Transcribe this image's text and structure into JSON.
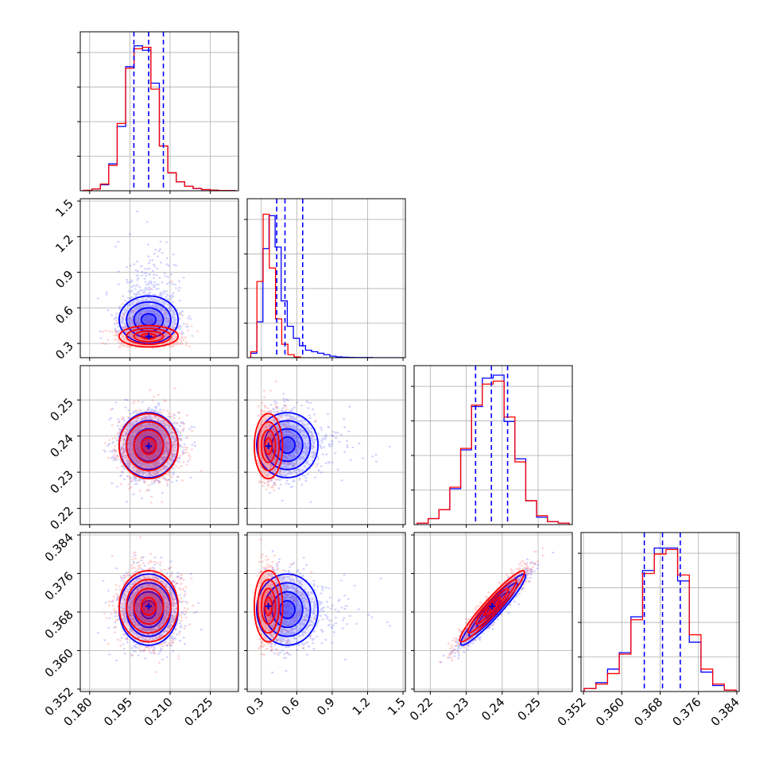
{
  "chart_data": {
    "type": "corner",
    "grid": true,
    "parameters": [
      {
        "ticks": [
          "0.180",
          "0.195",
          "0.210",
          "0.225"
        ],
        "tick_values": [
          0.18,
          0.195,
          0.21,
          0.225
        ],
        "range": [
          0.1765,
          0.2355
        ],
        "quantiles": [
          0.1965,
          0.202,
          0.2075
        ]
      },
      {
        "ticks": [
          "0.3",
          "0.6",
          "0.9",
          "1.2",
          "1.5"
        ],
        "tick_values": [
          0.3,
          0.6,
          0.9,
          1.2,
          1.5
        ],
        "range": [
          0.18,
          1.52
        ],
        "quantiles": [
          0.43,
          0.5,
          0.65
        ]
      },
      {
        "ticks": [
          "0.22",
          "0.23",
          "0.24",
          "0.25"
        ],
        "tick_values": [
          0.22,
          0.23,
          0.24,
          0.25
        ],
        "range": [
          0.2155,
          0.2595
        ],
        "quantiles": [
          0.2326,
          0.237,
          0.2415
        ]
      },
      {
        "ticks": [
          "0.352",
          "0.360",
          "0.368",
          "0.376",
          "0.384"
        ],
        "tick_values": [
          0.352,
          0.36,
          0.368,
          0.376,
          0.384
        ],
        "range": [
          0.3515,
          0.3845
        ],
        "quantiles": [
          0.3647,
          0.3685,
          0.3722
        ]
      }
    ],
    "series": [
      {
        "color": "#0000ff",
        "means": [
          0.202,
          0.52,
          0.2375,
          0.3685
        ],
        "sds": [
          0.0055,
          0.17,
          0.0045,
          0.0037
        ],
        "correlations": {
          "2-3": 0.95
        },
        "histograms": [
          [
            0.002,
            0.012,
            0.04,
            0.18,
            0.43,
            0.83,
            0.97,
            0.94,
            0.72,
            0.3,
            0.12,
            0.06,
            0.03,
            0.015,
            0.008,
            0.004,
            0.002,
            0.001
          ],
          [
            0.03,
            0.24,
            0.73,
            0.95,
            0.74,
            0.38,
            0.21,
            0.13,
            0.08,
            0.05,
            0.04,
            0.03,
            0.02,
            0.01,
            0.005,
            0.003,
            0.002,
            0.001,
            0.001,
            0.001,
            0.0,
            0.0,
            0.0,
            0.0,
            0.0
          ],
          [
            0.01,
            0.04,
            0.1,
            0.24,
            0.5,
            0.79,
            0.98,
            1.0,
            0.69,
            0.44,
            0.16,
            0.05,
            0.02,
            0.01
          ],
          [
            0.02,
            0.06,
            0.15,
            0.26,
            0.5,
            0.81,
            0.96,
            0.96,
            0.74,
            0.33,
            0.13,
            0.04,
            0.01
          ]
        ]
      },
      {
        "color": "#ff0000",
        "means": [
          0.202,
          0.36,
          0.2372,
          0.3692
        ],
        "sds": [
          0.0055,
          0.065,
          0.0045,
          0.0037
        ],
        "correlations": {
          "2-3": 0.95
        },
        "histograms": [
          [
            0.003,
            0.012,
            0.045,
            0.17,
            0.45,
            0.82,
            0.95,
            0.96,
            0.68,
            0.3,
            0.12,
            0.06,
            0.03,
            0.016,
            0.008,
            0.004,
            0.002,
            0.001
          ],
          [
            0.04,
            0.51,
            0.96,
            0.6,
            0.26,
            0.09,
            0.02,
            0.005
          ],
          [
            0.01,
            0.04,
            0.1,
            0.25,
            0.51,
            0.8,
            0.94,
            0.96,
            0.72,
            0.42,
            0.16,
            0.06,
            0.02,
            0.01
          ],
          [
            0.02,
            0.05,
            0.12,
            0.25,
            0.48,
            0.79,
            0.92,
            0.95,
            0.78,
            0.38,
            0.15,
            0.05,
            0.01
          ]
        ]
      }
    ],
    "histogram_bins": [
      18,
      [
        25,
        8
      ],
      14,
      13
    ]
  }
}
